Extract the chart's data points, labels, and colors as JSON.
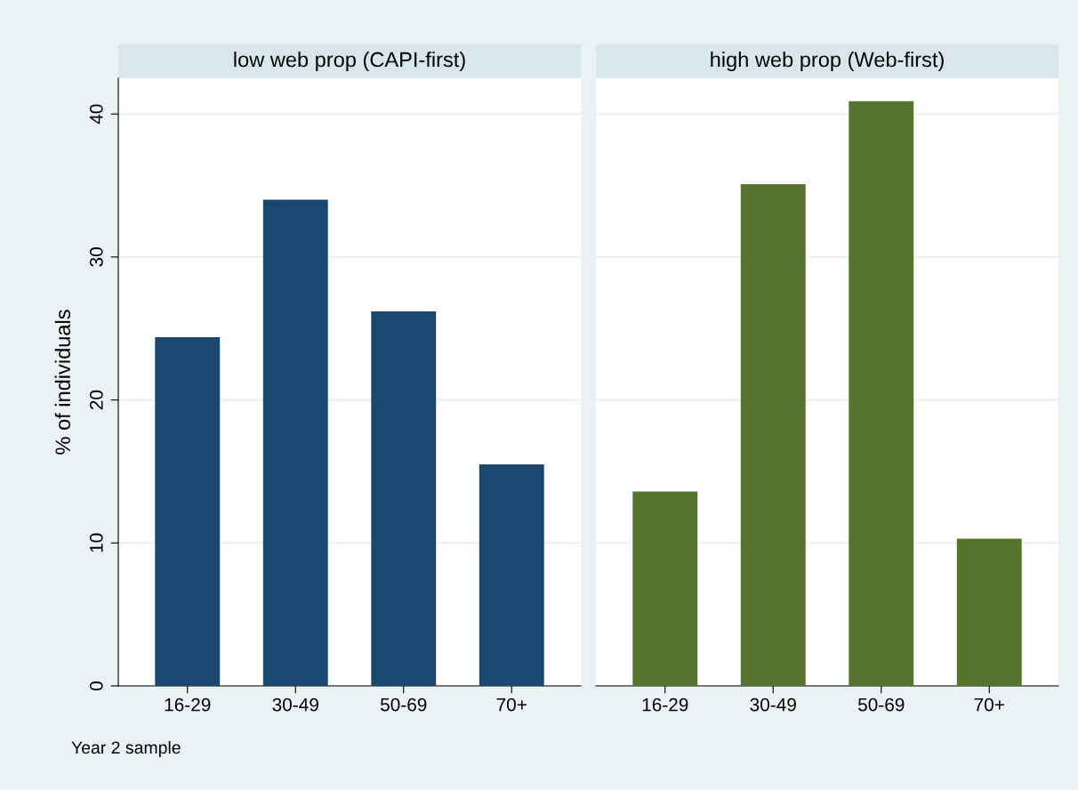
{
  "chart_data": [
    {
      "type": "bar",
      "title": "low web prop (CAPI-first)",
      "ylabel": "% of individuals",
      "categories": [
        "16-29",
        "30-49",
        "50-69",
        "70+"
      ],
      "values": [
        24.4,
        34.0,
        26.2,
        15.5
      ],
      "color": "#1a476f",
      "ylim": [
        0,
        42.5
      ],
      "yticks": [
        0,
        10,
        20,
        30,
        40
      ],
      "grid": "y",
      "annotations": [
        "Year 2 sample"
      ]
    },
    {
      "type": "bar",
      "title": "high web prop (Web-first)",
      "categories": [
        "16-29",
        "30-49",
        "50-69",
        "70+"
      ],
      "values": [
        13.6,
        35.1,
        40.9,
        10.3
      ],
      "color": "#55752f",
      "ylim": [
        0,
        42.5
      ],
      "yticks": [
        0,
        10,
        20,
        30,
        40
      ],
      "grid": "y",
      "tick_labels": "x"
    }
  ]
}
